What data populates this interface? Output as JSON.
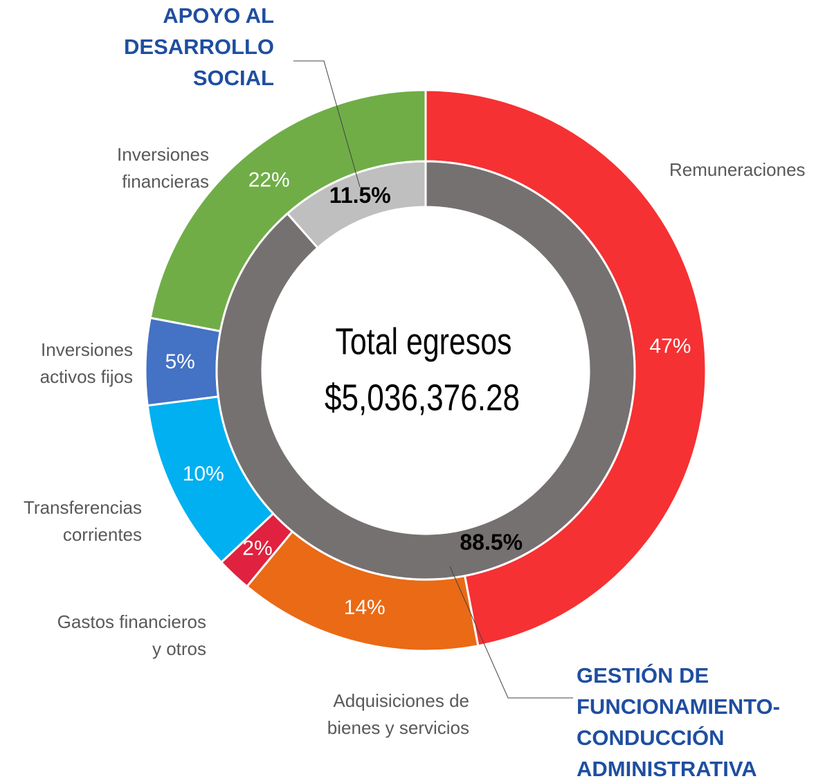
{
  "chart_data": {
    "type": "donut",
    "center_title": "Total egresos",
    "center_value": "$5,036,376.28",
    "outer": {
      "categories": [
        "Remuneraciones",
        "Adquisiciones de\nbienes y servicios",
        "Gastos financieros\ny otros",
        "Transferencias\ncorrientes",
        "Inversiones\nactivos fijos",
        "Inversiones\nfinancieras"
      ],
      "values": [
        47,
        14,
        2,
        10,
        5,
        22
      ],
      "value_labels": [
        "47%",
        "14%",
        "2%",
        "10%",
        "5%",
        "22%"
      ],
      "colors": [
        "#f53133",
        "#ea6a16",
        "#e0213f",
        "#00b0f0",
        "#4472c4",
        "#70ad47"
      ]
    },
    "inner": {
      "categories": [
        "GESTIÓN DE\nFUNCIONAMIENTO-\nCONDUCCIÓN\nADMINISTRATIVA",
        "APOYO AL\nDESARROLLO\nSOCIAL"
      ],
      "values": [
        88.5,
        11.5
      ],
      "value_labels": [
        "88.5%",
        "11.5%"
      ],
      "colors": [
        "#767171",
        "#bfbfbf"
      ]
    }
  }
}
